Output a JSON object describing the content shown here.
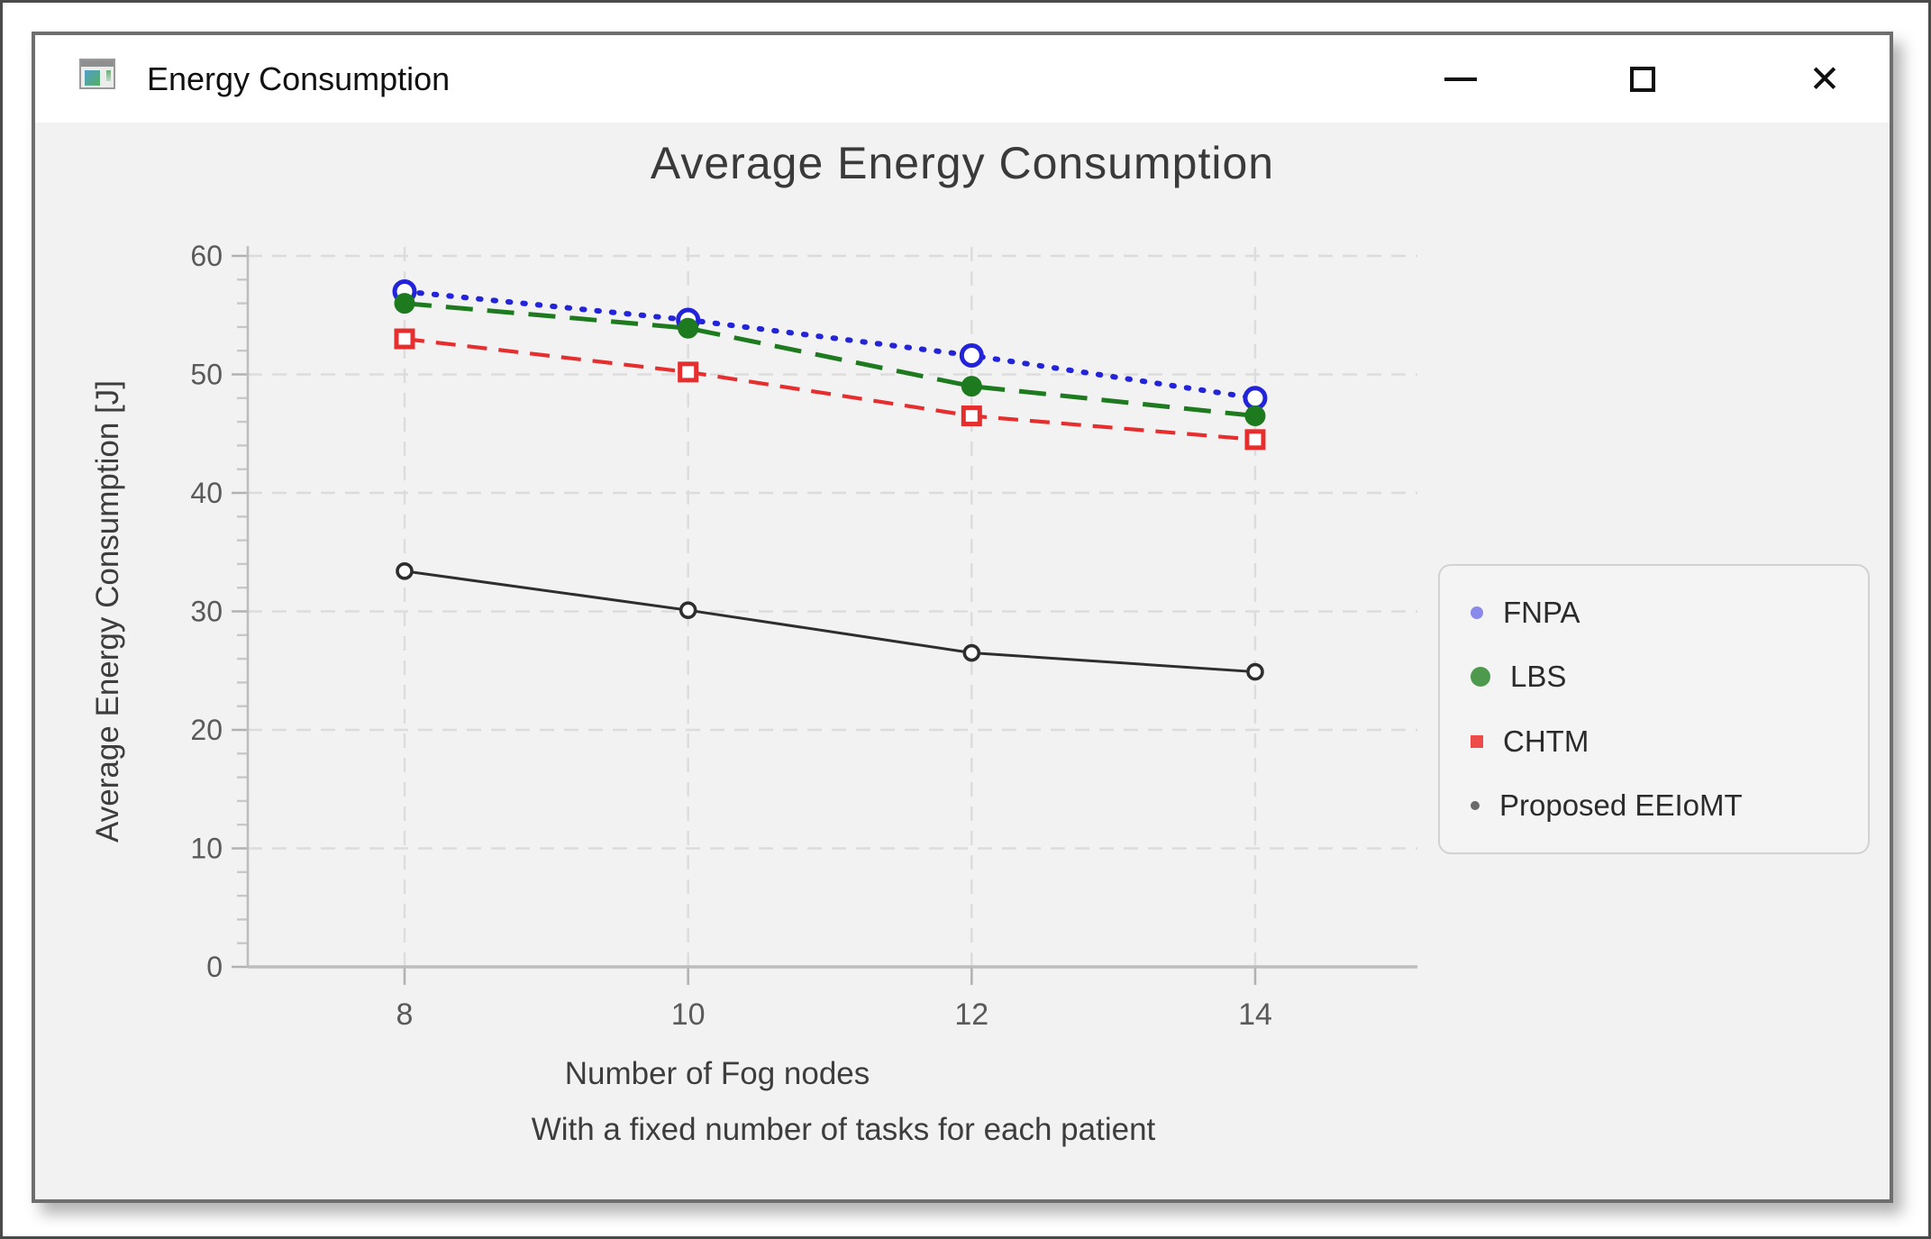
{
  "titlebar": {
    "title": "Energy Consumption",
    "close_glyph": "✕"
  },
  "chart_data": {
    "type": "line",
    "title": "Average Energy Consumption",
    "xlabel": "Number of Fog nodes",
    "xlabel_line2": "With a fixed number of tasks for each patient",
    "ylabel": "Average Energy Consumption [J]",
    "x": [
      8,
      10,
      12,
      14
    ],
    "xticks": [
      8,
      10,
      12,
      14
    ],
    "yticks": [
      0,
      10,
      20,
      30,
      40,
      50,
      60
    ],
    "y_minor_step": 2,
    "ylim": [
      0,
      60
    ],
    "xlim": [
      6.9,
      15.1
    ],
    "grid": true,
    "legend_position": "right",
    "series": [
      {
        "name": "FNPA",
        "values": [
          57,
          54.6,
          51.6,
          48
        ],
        "color": "#2323d9",
        "legend_marker_color": "#8a8aec",
        "line_style": "dotted",
        "marker": "circle-open"
      },
      {
        "name": "LBS",
        "values": [
          56,
          53.9,
          49,
          46.5
        ],
        "color": "#1e7a1e",
        "legend_marker_color": "#4d9a4f",
        "line_style": "longdash",
        "marker": "circle-filled"
      },
      {
        "name": "CHTM",
        "values": [
          53,
          50.2,
          46.5,
          44.5
        ],
        "color": "#e62e2e",
        "legend_marker_color": "#ef4b4b",
        "line_style": "dash",
        "marker": "square-open"
      },
      {
        "name": "Proposed EEIoMT",
        "values": [
          33.4,
          30.1,
          26.5,
          24.9
        ],
        "color": "#2e2e2e",
        "legend_marker_color": "#6a6a6a",
        "line_style": "solid",
        "marker": "circle-open-small"
      }
    ],
    "colors": {
      "background": "#f2f2f2",
      "gridline": "#dcdcdc",
      "axis": "#bdbdbd",
      "tick_label": "#5a5a5a",
      "axis_label": "#3d3d3d"
    }
  }
}
